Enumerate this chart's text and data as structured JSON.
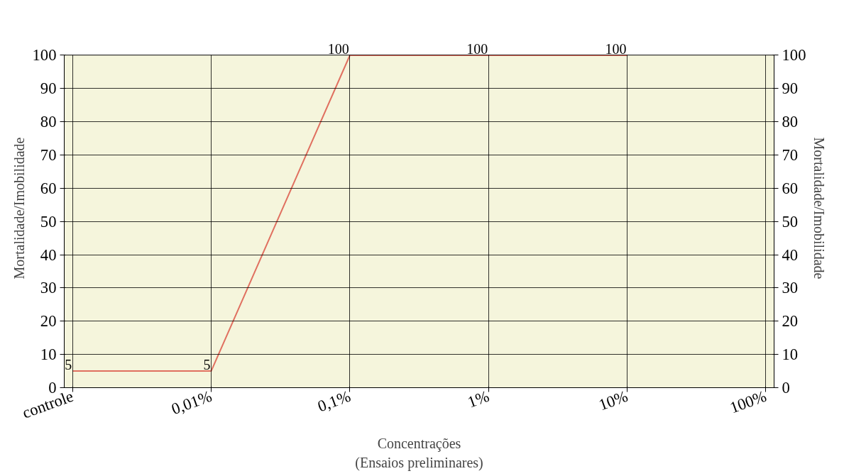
{
  "chart_data": {
    "type": "line",
    "xlabel": "Concentrações\n(Ensaios preliminares)",
    "ylabel": "Mortalidade/Imobilidade",
    "y2label": "Mortalidade/Imobilidade",
    "categories": [
      "controle",
      "0,01%",
      "0,1%",
      "1%",
      "10%",
      "100%"
    ],
    "series": [
      {
        "color": "#e07060",
        "values": [
          5,
          5,
          100,
          100,
          100,
          null
        ]
      }
    ],
    "ylim": [
      0,
      100
    ],
    "yticks": [
      0,
      10,
      20,
      30,
      40,
      50,
      60,
      70,
      80,
      90,
      100
    ],
    "y2lim": [
      0,
      100
    ],
    "y2ticks": [
      0,
      10,
      20,
      30,
      40,
      50,
      60,
      70,
      80,
      90,
      100
    ],
    "data_labels": true,
    "grid": true,
    "marker": "none",
    "line_style": "solid"
  }
}
